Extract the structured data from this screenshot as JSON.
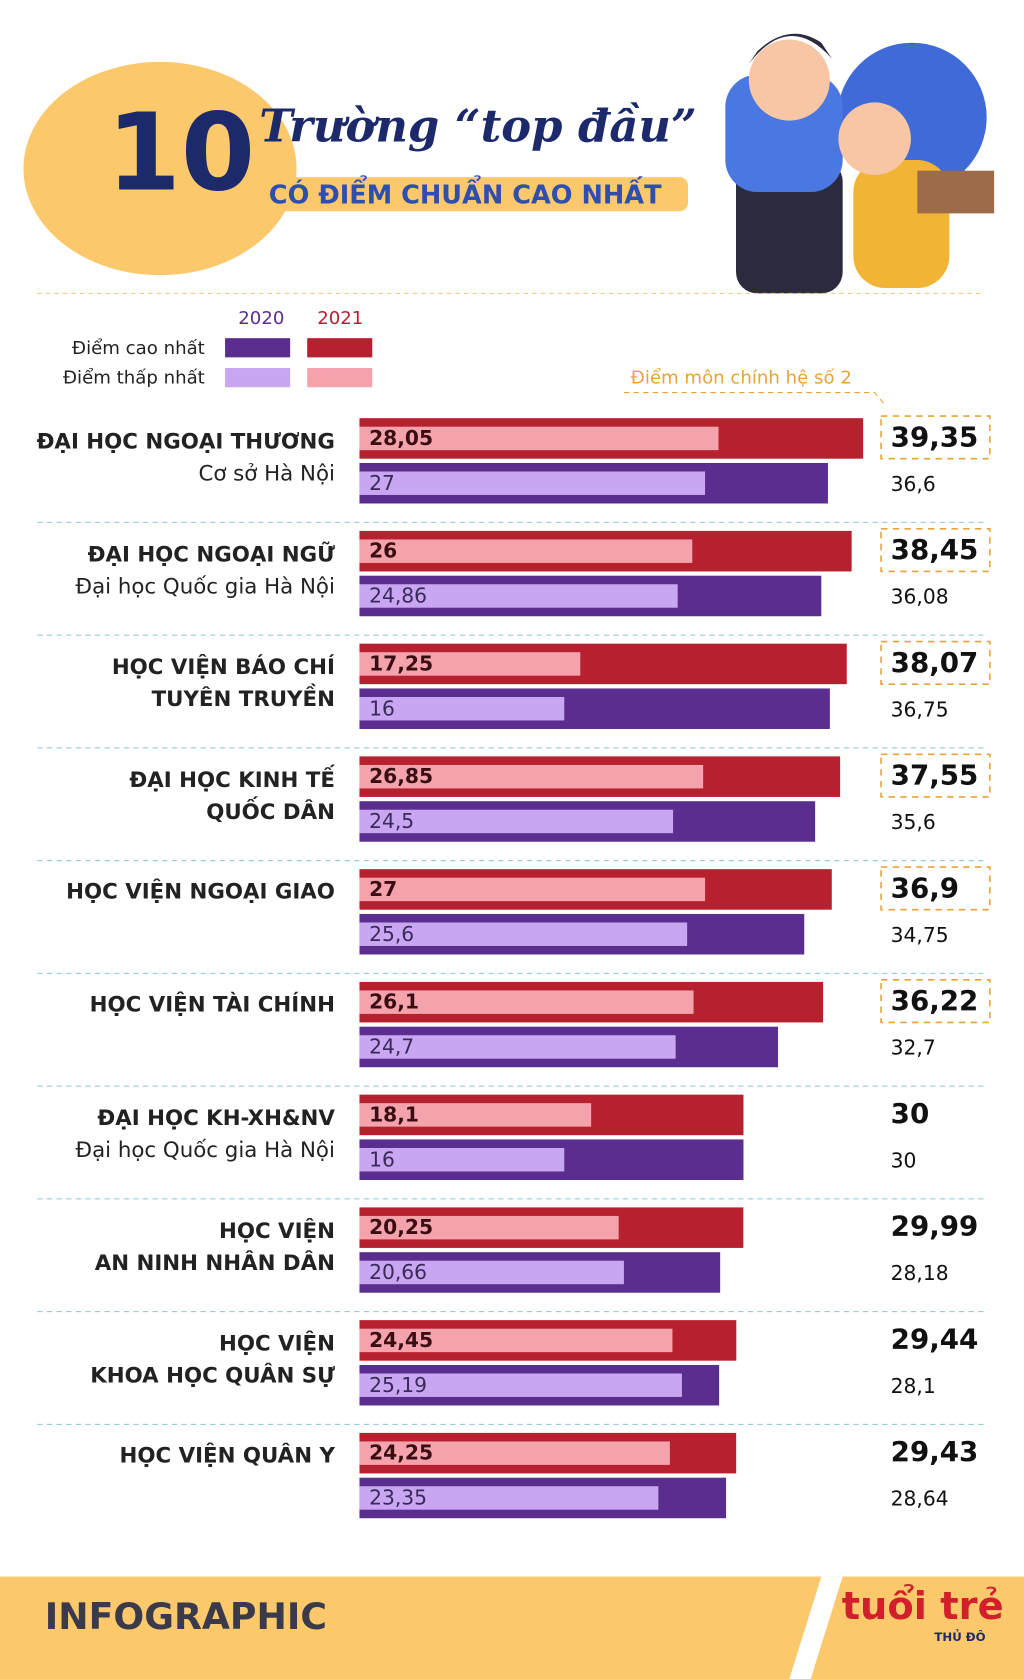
{
  "header": {
    "number": "10",
    "title": "Trường “top đầu”",
    "subtitle": "CÓ ĐIỂM CHUẨN CAO NHẤT"
  },
  "chart_data": {
    "type": "bar",
    "categories": [
      [
        "ĐẠI HỌC NGOẠI THƯƠNG"
      ],
      [
        "ĐẠI HỌC NGOẠI NGỮ"
      ],
      [
        "HỌC VIỆN BÁO CHÍ",
        "TUYÊN TRUYỀN"
      ],
      [
        "ĐẠI HỌC KINH TẾ",
        "QUỐC DÂN"
      ],
      [
        "HỌC VIỆN NGOẠI GIAO"
      ],
      [
        "HỌC VIỆN TÀI CHÍNH"
      ],
      [
        "ĐẠI HỌC KH-XH&NV"
      ],
      [
        "HỌC VIỆN",
        "AN NINH NHÂN DÂN"
      ],
      [
        "HỌC VIỆN",
        "KHOA HỌC QUÂN SỰ"
      ],
      [
        "HỌC VIỆN QUÂN Y"
      ]
    ],
    "category_notes": [
      "Cơ sở Hà Nội",
      "Đại học Quốc gia Hà Nội",
      null,
      null,
      null,
      null,
      "Đại học Quốc gia Hà Nội",
      null,
      null,
      null
    ],
    "legend": {
      "columns": [
        "2020",
        "2021"
      ],
      "rows": [
        "Điểm cao nhất",
        "Điểm thấp nhất"
      ]
    },
    "series": [
      {
        "color": "#5b2d8e",
        "values": [
          36.6,
          36.08,
          36.75,
          35.6,
          34.75,
          32.7,
          30,
          28.18,
          28.1,
          28.64
        ],
        "value_labels": [
          "36,6",
          "36,08",
          "36,75",
          "35,6",
          "34,75",
          "32,7",
          "30",
          "28,18",
          "28,1",
          "28,64"
        ]
      },
      {
        "color": "#b7202e",
        "values": [
          39.35,
          38.45,
          38.07,
          37.55,
          36.9,
          36.22,
          30,
          29.99,
          29.44,
          29.43
        ],
        "value_labels": [
          "39,35",
          "38,45",
          "38,07",
          "37,55",
          "36,9",
          "36,22",
          "30",
          "29,99",
          "29,44",
          "29,43"
        ]
      },
      {
        "color": "#c9a6f2",
        "values": [
          27,
          24.86,
          16,
          24.5,
          25.6,
          24.7,
          16,
          20.66,
          25.19,
          23.35
        ],
        "value_labels": [
          "27",
          "24,86",
          "16",
          "24,5",
          "25,6",
          "24,7",
          "16",
          "20,66",
          "25,19",
          "23,35"
        ]
      },
      {
        "color": "#f4a3ad",
        "values": [
          28.05,
          26,
          17.25,
          26.85,
          27,
          26.1,
          18.1,
          20.25,
          24.45,
          24.25
        ],
        "value_labels": [
          "28,05",
          "26",
          "17,25",
          "26,85",
          "27",
          "26,1",
          "18,1",
          "20,25",
          "24,45",
          "24,25"
        ]
      }
    ],
    "xlim": [
      0,
      40
    ],
    "annotation": {
      "text": "Điểm môn chính hệ số 2",
      "categories": [
        0,
        1,
        2,
        3,
        4,
        5
      ]
    }
  },
  "footer": {
    "label": "INFOGRAPHIC",
    "brand": "tuổi trẻ",
    "brand_sub": "THỦ ĐÔ"
  }
}
